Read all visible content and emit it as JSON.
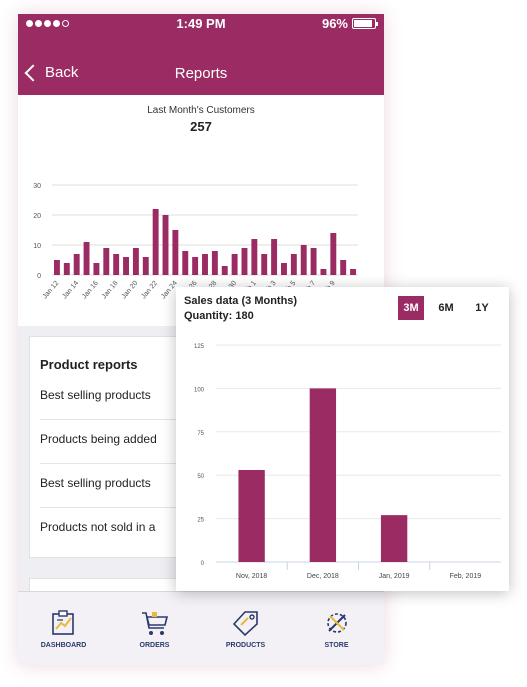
{
  "status_bar": {
    "time": "1:49 PM",
    "battery": "96%"
  },
  "nav": {
    "back_label": "Back",
    "title": "Reports"
  },
  "customers_card": {
    "title": "Last Month's Customers",
    "value": "257",
    "chart_data": {
      "type": "bar",
      "title": "Last Month's Customers",
      "x_tick_labels": [
        "Jan 12",
        "Jan 14",
        "Jan 16",
        "Jan 18",
        "Jan 20",
        "Jan 22",
        "Jan 24",
        "Jan 26",
        "Jan 28",
        "Jan 30",
        "Feb 1",
        "Feb 3",
        "Feb 5",
        "Feb 7",
        "Feb 9"
      ],
      "values": [
        5,
        4,
        7,
        11,
        4,
        9,
        7,
        6,
        9,
        6,
        22,
        20,
        15,
        8,
        6,
        7,
        8,
        3,
        7,
        9,
        12,
        7,
        12,
        4,
        7,
        10,
        9,
        2,
        14,
        5,
        2
      ],
      "ylim": [
        0,
        30
      ],
      "y_ticks": [
        0,
        10,
        20,
        30
      ],
      "grid": true,
      "color": "#9b2c63"
    }
  },
  "product_reports": {
    "title": "Product reports",
    "items": [
      "Best selling products",
      "Products being added",
      "Best selling products",
      "Products not sold in a"
    ]
  },
  "tabs": [
    {
      "label": "DASHBOARD",
      "icon": "dashboard-icon"
    },
    {
      "label": "ORDERS",
      "icon": "cart-icon"
    },
    {
      "label": "PRODUCTS",
      "icon": "tag-icon"
    },
    {
      "label": "STORE",
      "icon": "tools-icon"
    }
  ],
  "sales_popup": {
    "title": "Sales data (3 Months)",
    "quantity": "Quantity: 180",
    "ranges": [
      "3M",
      "6M",
      "1Y"
    ],
    "active_range": "3M",
    "chart_data": {
      "type": "bar",
      "title": "Sales data (3 Months)",
      "categories": [
        "Nov, 2018",
        "Dec, 2018",
        "Jan, 2019",
        "Feb, 2019"
      ],
      "values": [
        53,
        100,
        27,
        0
      ],
      "ylim": [
        0,
        125
      ],
      "y_ticks": [
        0,
        25,
        50,
        75,
        100,
        125
      ],
      "grid": true,
      "color": "#9b2c63"
    }
  },
  "colors": {
    "brand": "#9b2c63",
    "tab_label": "#2a3a6e",
    "icon_accent": "#e9b93a"
  }
}
